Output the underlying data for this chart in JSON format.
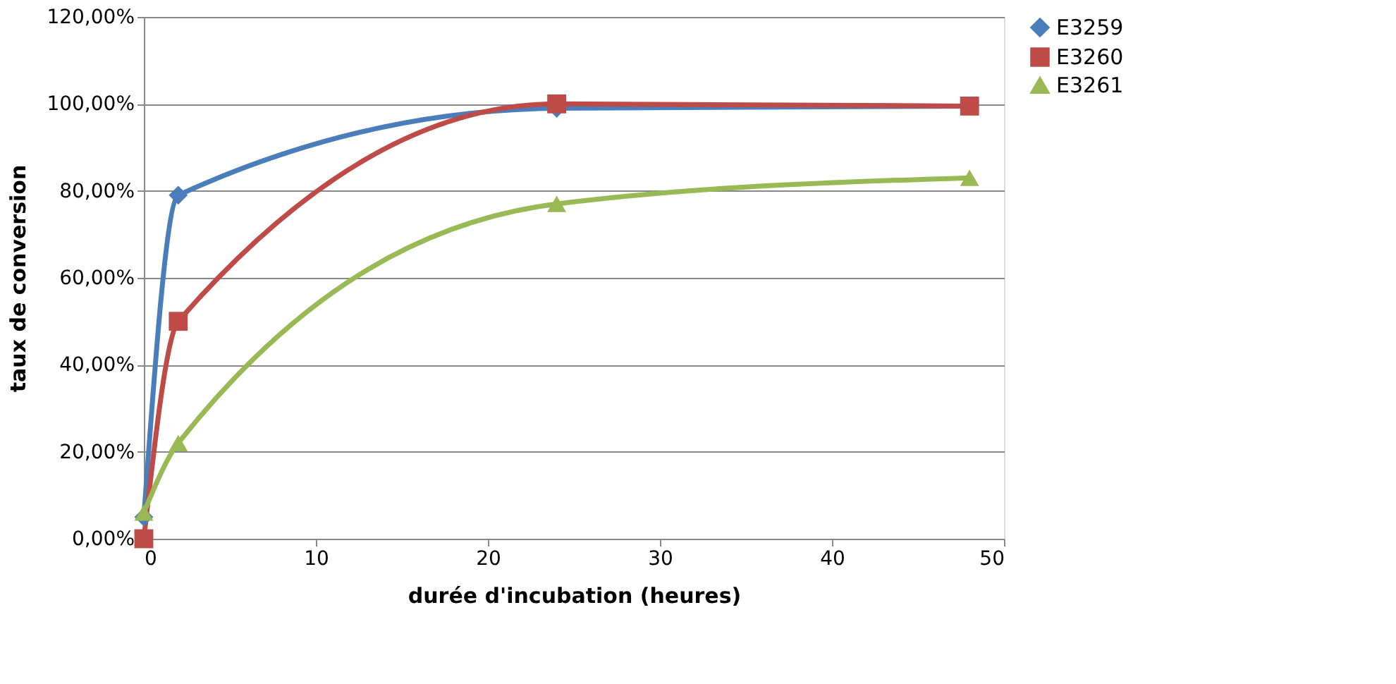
{
  "chart_data": {
    "type": "line",
    "xlabel": "durée d'incubation (heures)",
    "ylabel": "taux de conversion",
    "xlim": [
      0,
      50
    ],
    "xticks": [
      0,
      10,
      20,
      30,
      40,
      50
    ],
    "ylim": [
      0,
      120
    ],
    "yticks": [
      {
        "value": 0,
        "label": "0,00%"
      },
      {
        "value": 20,
        "label": "20,00%"
      },
      {
        "value": 40,
        "label": "40,00%"
      },
      {
        "value": 60,
        "label": "60,00%"
      },
      {
        "value": 80,
        "label": "80,00%"
      },
      {
        "value": 100,
        "label": "100,00%"
      },
      {
        "value": 120,
        "label": "120,00%"
      }
    ],
    "grid": "y",
    "legend": "right",
    "series": [
      {
        "name": "E3259",
        "color": "#4a7ebb",
        "marker": "diamond",
        "x": [
          0,
          2,
          24,
          48
        ],
        "values": [
          5,
          79,
          99,
          99.5
        ]
      },
      {
        "name": "E3260",
        "color": "#be4b48",
        "marker": "square",
        "x": [
          0,
          2,
          24,
          48
        ],
        "values": [
          0,
          50,
          100,
          99.5
        ]
      },
      {
        "name": "E3261",
        "color": "#98b954",
        "marker": "triangle",
        "x": [
          0,
          2,
          24,
          48
        ],
        "values": [
          6,
          22,
          77,
          83
        ]
      }
    ]
  }
}
